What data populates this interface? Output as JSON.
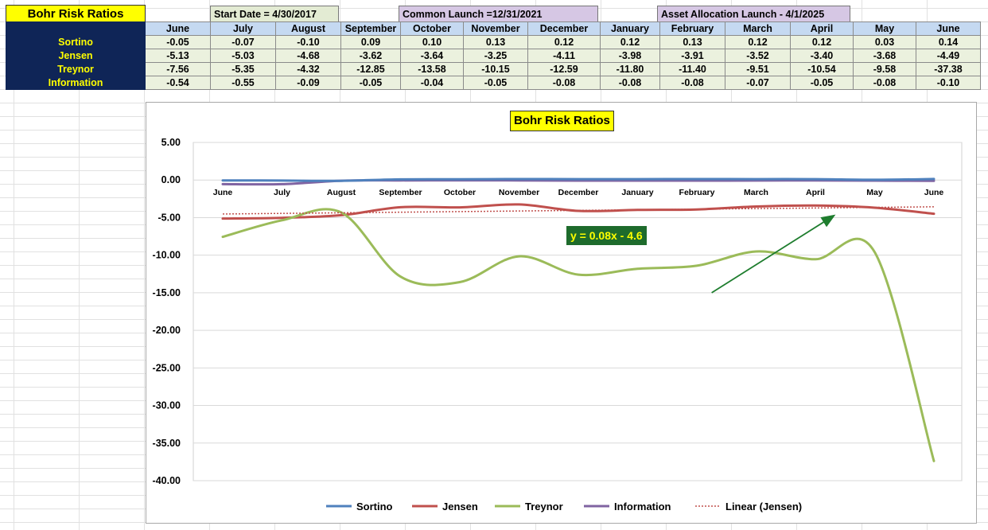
{
  "sheet": {
    "title": "Bohr Risk Ratios",
    "start_date": "Start Date = 4/30/2017",
    "common_launch": "Common Launch =12/31/2021",
    "asset_launch": "Asset Allocation Launch - 4/1/2025"
  },
  "table": {
    "months": [
      "June",
      "July",
      "August",
      "September",
      "October",
      "November",
      "December",
      "January",
      "February",
      "March",
      "April",
      "May",
      "June"
    ],
    "rows": [
      {
        "label": "Sortino",
        "values": [
          "-0.05",
          "-0.07",
          "-0.10",
          "0.09",
          "0.10",
          "0.13",
          "0.12",
          "0.12",
          "0.13",
          "0.12",
          "0.12",
          "0.03",
          "0.14"
        ]
      },
      {
        "label": "Jensen",
        "values": [
          "-5.13",
          "-5.03",
          "-4.68",
          "-3.62",
          "-3.64",
          "-3.25",
          "-4.11",
          "-3.98",
          "-3.91",
          "-3.52",
          "-3.40",
          "-3.68",
          "-4.49"
        ]
      },
      {
        "label": "Treynor",
        "values": [
          "-7.56",
          "-5.35",
          "-4.32",
          "-12.85",
          "-13.58",
          "-10.15",
          "-12.59",
          "-11.80",
          "-11.40",
          "-9.51",
          "-10.54",
          "-9.58",
          "-37.38"
        ]
      },
      {
        "label": "Information",
        "values": [
          "-0.54",
          "-0.55",
          "-0.09",
          "-0.05",
          "-0.04",
          "-0.05",
          "-0.08",
          "-0.08",
          "-0.08",
          "-0.07",
          "-0.05",
          "-0.08",
          "-0.10"
        ]
      }
    ]
  },
  "chart_data": {
    "type": "line",
    "title": "Bohr Risk Ratios",
    "categories": [
      "June",
      "July",
      "August",
      "September",
      "October",
      "November",
      "December",
      "January",
      "February",
      "March",
      "April",
      "May",
      "June"
    ],
    "ylim": [
      -40,
      5
    ],
    "yticks": [
      "5.00",
      "0.00",
      "-5.00",
      "-10.00",
      "-15.00",
      "-20.00",
      "-25.00",
      "-30.00",
      "-35.00",
      "-40.00"
    ],
    "ytick_values": [
      5,
      0,
      -5,
      -10,
      -15,
      -20,
      -25,
      -30,
      -35,
      -40
    ],
    "grid": true,
    "legend_position": "bottom",
    "series": [
      {
        "name": "Sortino",
        "color": "#4f81bd",
        "values": [
          -0.05,
          -0.07,
          -0.1,
          0.09,
          0.1,
          0.13,
          0.12,
          0.12,
          0.13,
          0.12,
          0.12,
          0.03,
          0.14
        ]
      },
      {
        "name": "Jensen",
        "color": "#c0504d",
        "values": [
          -5.13,
          -5.03,
          -4.68,
          -3.62,
          -3.64,
          -3.25,
          -4.11,
          -3.98,
          -3.91,
          -3.52,
          -3.4,
          -3.68,
          -4.49
        ]
      },
      {
        "name": "Treynor",
        "color": "#9bbb59",
        "values": [
          -7.56,
          -5.35,
          -4.32,
          -12.85,
          -13.58,
          -10.15,
          -12.59,
          -11.8,
          -11.4,
          -9.51,
          -10.54,
          -9.58,
          -37.38
        ]
      },
      {
        "name": "Information",
        "color": "#8064a2",
        "values": [
          -0.54,
          -0.55,
          -0.09,
          -0.05,
          -0.04,
          -0.05,
          -0.08,
          -0.08,
          -0.08,
          -0.07,
          -0.05,
          -0.08,
          -0.1
        ]
      }
    ],
    "trendline": {
      "name": "Linear (Jensen)",
      "color": "#c0504d",
      "equation": "y = 0.08x - 4.6",
      "slope": 0.08,
      "intercept": -4.6
    },
    "annotation": {
      "type": "arrow",
      "color": "#1e7d2e",
      "from": {
        "x": 8.25,
        "y": -15
      },
      "to": {
        "x": 10.3,
        "y": -4.8
      }
    }
  }
}
